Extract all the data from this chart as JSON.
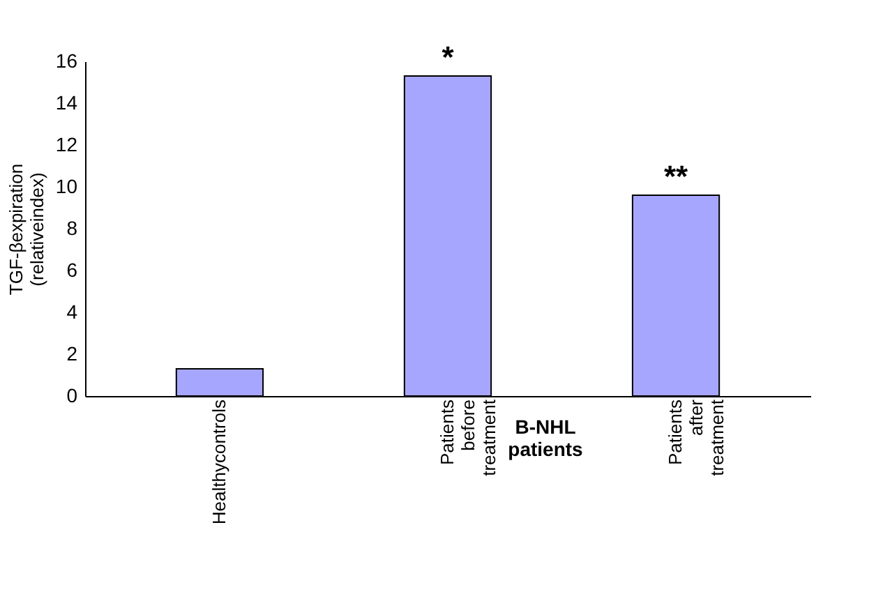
{
  "chart_data": {
    "type": "bar",
    "ylabel": "TGF-βexpiration (relativeindex)",
    "categories": [
      "Healthycontrols",
      "Patients before treatment",
      "Patients after treatment"
    ],
    "values": [
      1.3,
      15.3,
      9.6
    ],
    "color": "#a6a6ff",
    "ylim": [
      0,
      16
    ],
    "yticks": [
      0,
      2,
      4,
      6,
      8,
      10,
      12,
      14,
      16
    ],
    "grid": false,
    "annotations": [
      {
        "text": "*",
        "x": "Patients before treatment",
        "y": 15.3
      },
      {
        "text": "**",
        "x": "Patients after treatment",
        "y": 9.6
      },
      "B-NHL patients"
    ]
  }
}
